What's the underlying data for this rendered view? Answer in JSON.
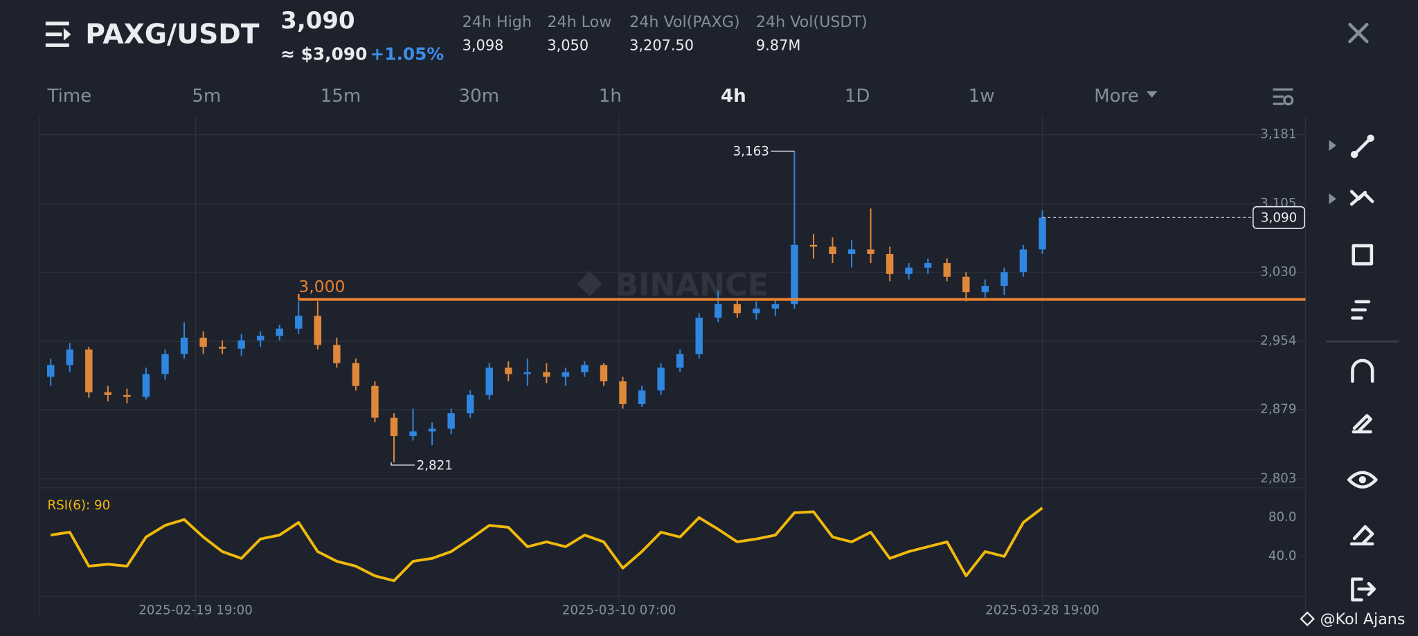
{
  "header": {
    "pair": "PAXG/USDT",
    "price": "3,090",
    "fiat_price": "≈ $3,090",
    "change": "+1.05%",
    "stats": [
      {
        "label": "24h High",
        "value": "3,098"
      },
      {
        "label": "24h Low",
        "value": "3,050"
      },
      {
        "label": "24h Vol(PAXG)",
        "value": "3,207.50"
      },
      {
        "label": "24h Vol(USDT)",
        "value": "9.87M"
      }
    ],
    "tabs": [
      "Time",
      "5m",
      "15m",
      "30m",
      "1h",
      "4h",
      "1D",
      "1w",
      "More"
    ]
  },
  "watermark": "BINANCE",
  "credit": "@Kol Ajans",
  "chart_data": {
    "type": "candlestick",
    "up_color": "#2f86e0",
    "down_color": "#e0883a",
    "x": [
      3,
      8,
      13,
      18,
      23,
      28,
      33,
      38,
      43,
      48,
      53,
      58,
      63,
      68,
      73,
      78,
      83,
      88,
      93,
      98,
      103,
      108,
      113,
      118,
      123,
      128,
      133,
      138,
      143,
      148,
      153,
      158,
      163,
      168,
      173,
      178,
      183,
      188,
      193,
      198,
      203,
      208,
      213,
      218,
      223,
      228,
      233,
      238,
      243,
      248,
      253,
      258,
      263
    ],
    "ohlc": [
      [
        2915,
        2935,
        2905,
        2928
      ],
      [
        2928,
        2952,
        2920,
        2945
      ],
      [
        2945,
        2948,
        2892,
        2898
      ],
      [
        2898,
        2905,
        2888,
        2895
      ],
      [
        2895,
        2902,
        2886,
        2893
      ],
      [
        2893,
        2925,
        2890,
        2918
      ],
      [
        2918,
        2945,
        2912,
        2940
      ],
      [
        2940,
        2975,
        2935,
        2958
      ],
      [
        2958,
        2965,
        2940,
        2948
      ],
      [
        2948,
        2955,
        2940,
        2946
      ],
      [
        2946,
        2962,
        2938,
        2955
      ],
      [
        2955,
        2965,
        2948,
        2960
      ],
      [
        2960,
        2972,
        2955,
        2968
      ],
      [
        2968,
        2998,
        2962,
        2982
      ],
      [
        2982,
        2998,
        2945,
        2950
      ],
      [
        2950,
        2958,
        2925,
        2930
      ],
      [
        2930,
        2935,
        2900,
        2905
      ],
      [
        2905,
        2910,
        2865,
        2870
      ],
      [
        2870,
        2875,
        2821,
        2850
      ],
      [
        2850,
        2880,
        2845,
        2855
      ],
      [
        2855,
        2865,
        2840,
        2858
      ],
      [
        2858,
        2880,
        2852,
        2875
      ],
      [
        2875,
        2900,
        2870,
        2895
      ],
      [
        2895,
        2930,
        2890,
        2925
      ],
      [
        2925,
        2932,
        2910,
        2918
      ],
      [
        2918,
        2935,
        2905,
        2920
      ],
      [
        2920,
        2930,
        2908,
        2915
      ],
      [
        2915,
        2925,
        2905,
        2920
      ],
      [
        2920,
        2932,
        2915,
        2928
      ],
      [
        2928,
        2930,
        2905,
        2910
      ],
      [
        2910,
        2915,
        2880,
        2885
      ],
      [
        2885,
        2905,
        2882,
        2900
      ],
      [
        2900,
        2930,
        2895,
        2925
      ],
      [
        2925,
        2945,
        2920,
        2940
      ],
      [
        2940,
        2985,
        2935,
        2980
      ],
      [
        2980,
        3010,
        2975,
        2995
      ],
      [
        2995,
        3000,
        2980,
        2985
      ],
      [
        2985,
        2998,
        2978,
        2990
      ],
      [
        2990,
        3000,
        2982,
        2995
      ],
      [
        2995,
        3163,
        2990,
        3060
      ],
      [
        3060,
        3072,
        3045,
        3058
      ],
      [
        3058,
        3068,
        3040,
        3050
      ],
      [
        3050,
        3065,
        3035,
        3055
      ],
      [
        3055,
        3100,
        3040,
        3050
      ],
      [
        3050,
        3058,
        3020,
        3028
      ],
      [
        3028,
        3040,
        3022,
        3035
      ],
      [
        3035,
        3045,
        3028,
        3040
      ],
      [
        3040,
        3045,
        3020,
        3025
      ],
      [
        3025,
        3030,
        2998,
        3008
      ],
      [
        3008,
        3022,
        3002,
        3015
      ],
      [
        3015,
        3035,
        3005,
        3030
      ],
      [
        3030,
        3060,
        3025,
        3055
      ],
      [
        3055,
        3098,
        3050,
        3090
      ]
    ],
    "xlim": [
      0,
      332
    ],
    "xticks": [
      {
        "value": 41,
        "label": "2025-02-19 19:00"
      },
      {
        "value": 152,
        "label": "2025-03-10 07:00"
      },
      {
        "value": 263,
        "label": "2025-03-28 19:00"
      }
    ],
    "ylim": [
      2793,
      3202
    ],
    "yticks": [
      {
        "value": 3181,
        "label": "3,181"
      },
      {
        "value": 3105,
        "label": "3,105"
      },
      {
        "value": 3030,
        "label": "3,030"
      },
      {
        "value": 2954,
        "label": "2,954"
      },
      {
        "value": 2879,
        "label": "2,879"
      },
      {
        "value": 2803,
        "label": "2,803"
      }
    ],
    "grid": true,
    "level_line": {
      "value": 3000,
      "label": "3,000",
      "color": "#e8822f"
    },
    "last_price": {
      "value": 3090,
      "label": "3,090"
    },
    "high_marker": {
      "value": 3163,
      "label": "3,163"
    },
    "low_marker": {
      "value": 2821,
      "label": "2,821"
    },
    "rsi": {
      "label": "RSI(6): 90",
      "color": "#f0b90b",
      "values": [
        62,
        65,
        30,
        32,
        30,
        60,
        72,
        78,
        60,
        45,
        38,
        58,
        62,
        75,
        45,
        35,
        30,
        20,
        15,
        35,
        38,
        45,
        58,
        72,
        70,
        50,
        55,
        50,
        62,
        55,
        28,
        45,
        65,
        60,
        80,
        68,
        55,
        58,
        62,
        85,
        86,
        60,
        55,
        65,
        38,
        45,
        50,
        55,
        20,
        45,
        40,
        75,
        90
      ],
      "ylim": [
        -1,
        106
      ],
      "yticks": [
        {
          "value": 80,
          "label": "80.0"
        },
        {
          "value": 40,
          "label": "40.0"
        }
      ]
    }
  }
}
